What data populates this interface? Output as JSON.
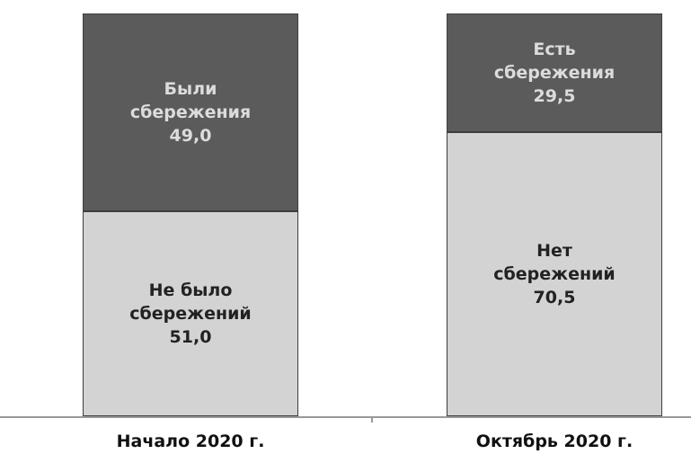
{
  "chart_data": {
    "type": "stacked_bar",
    "categories": [
      "Начало 2020 г.",
      "Октябрь 2020 г."
    ],
    "series": [
      {
        "labels": [
          "Не было сбережений",
          "Нет сбережений"
        ],
        "values": [
          51.0,
          70.5
        ],
        "value_labels": [
          "51,0",
          "70,5"
        ],
        "color": "#d3d3d3",
        "text_color": "#222222"
      },
      {
        "labels": [
          "Были сбережения",
          "Есть сбережения"
        ],
        "values": [
          49.0,
          29.5
        ],
        "value_labels": [
          "49,0",
          "29,5"
        ],
        "color": "#5b5b5b",
        "text_color": "#dcdcdc"
      }
    ],
    "ylim": [
      0,
      100
    ]
  }
}
